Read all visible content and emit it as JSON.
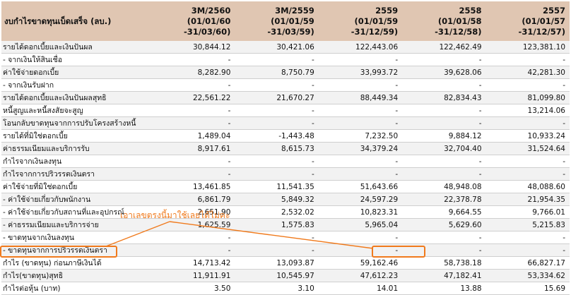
{
  "table": {
    "header": {
      "label": "งบกำไรขาดทุนเบ็ดเสร็จ (ลบ.)",
      "columns": [
        {
          "line1": "3M/2560",
          "line2": "(01/01/60",
          "line3": "-31/03/60)"
        },
        {
          "line1": "3M/2559",
          "line2": "(01/01/59",
          "line3": "-31/03/59)"
        },
        {
          "line1": "2559",
          "line2": "(01/01/59",
          "line3": "-31/12/59)"
        },
        {
          "line1": "2558",
          "line2": "(01/01/58",
          "line3": "-31/12/58)"
        },
        {
          "line1": "2557",
          "line2": "(01/01/57",
          "line3": "-31/12/57)"
        }
      ]
    },
    "rows": [
      {
        "label": "รายได้ดอกเบี้ยและเงินปันผล",
        "values": [
          "30,844.12",
          "30,421.06",
          "122,443.06",
          "122,462.49",
          "123,381.10"
        ]
      },
      {
        "label": "- จากเงินให้สินเชื่อ",
        "values": [
          "-",
          "-",
          "-",
          "-",
          "-"
        ]
      },
      {
        "label": "ค่าใช้จ่ายดอกเบี้ย",
        "values": [
          "8,282.90",
          "8,750.79",
          "33,993.72",
          "39,628.06",
          "42,281.30"
        ]
      },
      {
        "label": "- จากเงินรับฝาก",
        "values": [
          "-",
          "-",
          "-",
          "-",
          "-"
        ]
      },
      {
        "label": "รายได้ดอกเบี้ยและเงินปันผลสุทธิ",
        "values": [
          "22,561.22",
          "21,670.27",
          "88,449.34",
          "82,834.43",
          "81,099.80"
        ]
      },
      {
        "label": "หนี้สูญและหนี้สงสัยจะสูญ",
        "values": [
          "-",
          "-",
          "-",
          "-",
          "13,214.06"
        ]
      },
      {
        "label": "โอนกลับขาดทุนจากการปรับโครงสร้างหนี้",
        "values": [
          "-",
          "-",
          "-",
          "-",
          "-"
        ]
      },
      {
        "label": "รายได้ที่มิใช่ดอกเบี้ย",
        "values": [
          "1,489.04",
          "-1,443.48",
          "7,232.50",
          "9,884.12",
          "10,933.24"
        ]
      },
      {
        "label": "ค่าธรรมเนียมและบริการรับ",
        "values": [
          "8,917.61",
          "8,615.73",
          "34,379.24",
          "32,704.40",
          "31,524.64"
        ]
      },
      {
        "label": "กำไรจากเงินลงทุน",
        "values": [
          "-",
          "-",
          "-",
          "-",
          "-"
        ]
      },
      {
        "label": "กำไรจากการปริวรรตเงินตรา",
        "values": [
          "-",
          "-",
          "-",
          "-",
          "-"
        ]
      },
      {
        "label": "ค่าใช้จ่ายที่มิใช่ดอกเบี้ย",
        "values": [
          "13,461.85",
          "11,541.35",
          "51,643.66",
          "48,948.08",
          "48,088.60"
        ]
      },
      {
        "label": "- ค่าใช้จ่ายเกี่ยวกับพนักงาน",
        "values": [
          "6,861.79",
          "5,849.32",
          "24,597.29",
          "22,378.78",
          "21,954.35"
        ]
      },
      {
        "label": "- ค่าใช้จ่ายเกี่ยวกับสถานที่และอุปกรณ์",
        "values": [
          "2,651.90",
          "2,532.02",
          "10,823.31",
          "9,664.55",
          "9,766.01"
        ]
      },
      {
        "label": "- ค่าธรรมเนียมและบริการจ่าย",
        "values": [
          "1,625.59",
          "1,575.83",
          "5,965.04",
          "5,629.60",
          "5,215.83"
        ]
      },
      {
        "label": "- ขาดทุนจากเงินลงทุน",
        "values": [
          "-",
          "-",
          "-",
          "-",
          "-"
        ]
      },
      {
        "label": "- ขาดทุนจากการปริวรรตเงินตรา",
        "values": [
          "-",
          "-",
          "-",
          "-",
          "-"
        ]
      },
      {
        "label": "กำไร (ขาดทุน) ก่อนภาษีเงินได้",
        "values": [
          "14,713.42",
          "13,093.87",
          "59,162.46",
          "58,738.18",
          "66,827.17"
        ]
      },
      {
        "label": "กำไร(ขาดทุน)สุทธิ",
        "values": [
          "11,911.91",
          "10,545.97",
          "47,612.23",
          "47,182.41",
          "53,334.62"
        ]
      },
      {
        "label": "กำไรต่อหุ้น (บาท)",
        "values": [
          "3.50",
          "3.10",
          "14.01",
          "13.88",
          "15.69"
        ]
      }
    ]
  },
  "annotation": {
    "text": "เอาเลขตรงนี้มาใช้เลยได้ไม่คะ",
    "color": "#f07a1c"
  }
}
